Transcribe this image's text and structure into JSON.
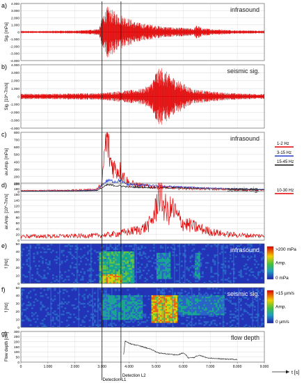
{
  "chart_data": [
    {
      "panel": "a)",
      "type": "line",
      "title": "infrasound",
      "ylabel": "Sig. [mPa]",
      "yticks": [
        "4.000",
        "3.000",
        "2.000",
        "1.000",
        "0",
        "-1.000",
        "-2.000",
        "-3.000",
        "-4.000"
      ],
      "ylim": [
        -4000,
        4000
      ],
      "xlim": [
        0,
        9000
      ],
      "envelope": {
        "x": [
          0,
          1000,
          1500,
          2000,
          2500,
          2900,
          3000,
          3200,
          3500,
          3800,
          4200,
          4500,
          4800,
          5200,
          5500,
          6000,
          6400,
          6500,
          6700,
          7000,
          8000,
          9000
        ],
        "amp": [
          150,
          150,
          200,
          200,
          300,
          500,
          2300,
          3600,
          2800,
          2300,
          1500,
          1200,
          1100,
          800,
          700,
          600,
          500,
          1000,
          550,
          450,
          250,
          200
        ]
      },
      "series": [
        {
          "color": "#e00000"
        }
      ]
    },
    {
      "panel": "b)",
      "type": "line",
      "title": "seismic sig.",
      "ylabel": "Sig. [10^-7m/s]",
      "yticks": [
        "4.000",
        "3.000",
        "2.000",
        "1.000",
        "0",
        "-1.000",
        "-2.000",
        "-3.000",
        "-4.000"
      ],
      "ylim": [
        -4000,
        4000
      ],
      "xlim": [
        0,
        9000
      ],
      "envelope": {
        "x": [
          0,
          1000,
          2000,
          3000,
          3500,
          4000,
          4500,
          4800,
          5000,
          5200,
          5500,
          5800,
          6000,
          6300,
          6500,
          7000,
          7500,
          8000,
          9000
        ],
        "amp": [
          350,
          350,
          400,
          450,
          650,
          800,
          1000,
          1600,
          3300,
          3700,
          2800,
          2100,
          1700,
          1000,
          900,
          650,
          500,
          400,
          300
        ]
      },
      "series": [
        {
          "color": "#e00000"
        }
      ]
    },
    {
      "panel": "c)",
      "type": "line",
      "title": "infrasound",
      "ylabel": "av.Amp. [mPa]",
      "yticks": [
        "800",
        "700",
        "600",
        "500",
        "400",
        "300",
        "200",
        "100",
        "0"
      ],
      "ylim": [
        0,
        800
      ],
      "xlim": [
        0,
        9000
      ],
      "series": [
        {
          "name": "1-2 Hz",
          "color": "#e00000",
          "x": [
            0,
            1000,
            2000,
            2800,
            3000,
            3100,
            3200,
            3300,
            3500,
            3700,
            3800,
            4000,
            4500,
            5000,
            6000,
            7000,
            8000,
            9000
          ],
          "y": [
            12,
            14,
            18,
            30,
            90,
            560,
            700,
            420,
            300,
            280,
            200,
            110,
            75,
            60,
            45,
            35,
            25,
            20
          ]
        },
        {
          "name": "3-15 Hz",
          "color": "#1f3fd0",
          "x": [
            0,
            1000,
            2000,
            2800,
            3000,
            3200,
            3500,
            3700,
            3800,
            4000,
            4500,
            5000,
            6000,
            7000,
            8000,
            9000
          ],
          "y": [
            6,
            8,
            10,
            20,
            85,
            150,
            135,
            150,
            115,
            95,
            85,
            75,
            60,
            45,
            35,
            28
          ]
        },
        {
          "name": "15-45 Hz",
          "color": "#111111",
          "x": [
            0,
            1000,
            2000,
            2800,
            3000,
            3200,
            3500,
            3800,
            4000,
            4500,
            5000,
            6000,
            7000,
            8000,
            9000
          ],
          "y": [
            4,
            5,
            7,
            12,
            50,
            90,
            80,
            70,
            62,
            56,
            52,
            45,
            36,
            28,
            22
          ]
        }
      ]
    },
    {
      "panel": "d)",
      "type": "line",
      "title": "seismic sig.",
      "ylabel": "av.Amp. [10^-7m/s]",
      "yticks": [
        "200",
        "180",
        "160",
        "140",
        "120",
        "100",
        "80",
        "60",
        "40",
        "20",
        "0"
      ],
      "ylim": [
        0,
        200
      ],
      "xlim": [
        0,
        9000
      ],
      "series": [
        {
          "name": "10-30 Hz",
          "color": "#e00000",
          "x": [
            0,
            1000,
            2000,
            3000,
            3500,
            4000,
            4500,
            4800,
            5000,
            5100,
            5200,
            5400,
            5600,
            5800,
            6000,
            6300,
            6500,
            7000,
            7500,
            8000,
            9000
          ],
          "y": [
            14,
            14,
            15,
            17,
            22,
            30,
            40,
            60,
            110,
            190,
            150,
            95,
            110,
            80,
            60,
            50,
            45,
            30,
            22,
            18,
            15
          ]
        }
      ]
    },
    {
      "panel": "e)",
      "type": "heatmap",
      "title": "infrasound",
      "ylabel": "f [Hz]",
      "yticks": [
        "50",
        "40",
        "30",
        "20",
        "10",
        "0"
      ],
      "ylim": [
        0,
        50
      ],
      "xlim": [
        0,
        9000
      ],
      "colorbar": {
        "max_label": ">200 mPa",
        "mid_label": "Amp.",
        "min_label": "0 mPa"
      },
      "hot_zones": [
        {
          "x0": 2900,
          "x1": 4200,
          "f0": 0,
          "f1": 40,
          "level": 0.45
        },
        {
          "x0": 3000,
          "x1": 3700,
          "f0": 0,
          "f1": 12,
          "level": 0.85
        },
        {
          "x0": 5000,
          "x1": 5500,
          "f0": 5,
          "f1": 38,
          "level": 0.35
        },
        {
          "x0": 6400,
          "x1": 6600,
          "f0": 5,
          "f1": 38,
          "level": 0.35
        }
      ]
    },
    {
      "panel": "f)",
      "type": "heatmap",
      "title": "seismic sig.",
      "ylabel": "f [Hz]",
      "yticks": [
        "50",
        "40",
        "30",
        "20",
        "10",
        "0"
      ],
      "ylim": [
        0,
        50
      ],
      "xlim": [
        0,
        9000
      ],
      "colorbar": {
        "max_label": ">15 µm/s",
        "mid_label": "Amp.",
        "min_label": "0 µm/s"
      },
      "hot_zones": [
        {
          "x0": 4800,
          "x1": 5800,
          "f0": 5,
          "f1": 40,
          "level": 0.85
        },
        {
          "x0": 3000,
          "x1": 4500,
          "f0": 10,
          "f1": 40,
          "level": 0.35
        },
        {
          "x0": 5800,
          "x1": 7500,
          "f0": 15,
          "f1": 40,
          "level": 0.3
        }
      ]
    },
    {
      "panel": "g)",
      "type": "line",
      "title": "flow depth",
      "ylabel": "Flow depth [cm]",
      "yticks": [
        "300",
        "250",
        "200",
        "150",
        "100",
        "50",
        "0"
      ],
      "ylim": [
        0,
        300
      ],
      "xlim": [
        0,
        9000
      ],
      "xticks": [
        "0",
        "1.000",
        "2.000",
        "3.000",
        "4.000",
        "5.000",
        "6.000",
        "7.000",
        "8.000",
        "9.000"
      ],
      "xlabel": "t [s]",
      "series": [
        {
          "color": "#222222",
          "x": [
            3800,
            3850,
            3950,
            4100,
            4300,
            4500,
            4700,
            4900,
            5000,
            5100,
            5200,
            5400,
            5600,
            5800,
            6000,
            6100,
            6200,
            6400,
            6600,
            6800,
            7000,
            7200,
            7500,
            7800,
            8000
          ],
          "y": [
            70,
            205,
            195,
            175,
            165,
            150,
            135,
            115,
            100,
            90,
            85,
            80,
            75,
            70,
            90,
            70,
            40,
            45,
            70,
            48,
            40,
            35,
            30,
            28,
            25
          ]
        }
      ]
    }
  ],
  "markers": [
    {
      "x": 3000,
      "label": "Detection L1"
    },
    {
      "x": 3700,
      "label": "Detection L2"
    }
  ]
}
